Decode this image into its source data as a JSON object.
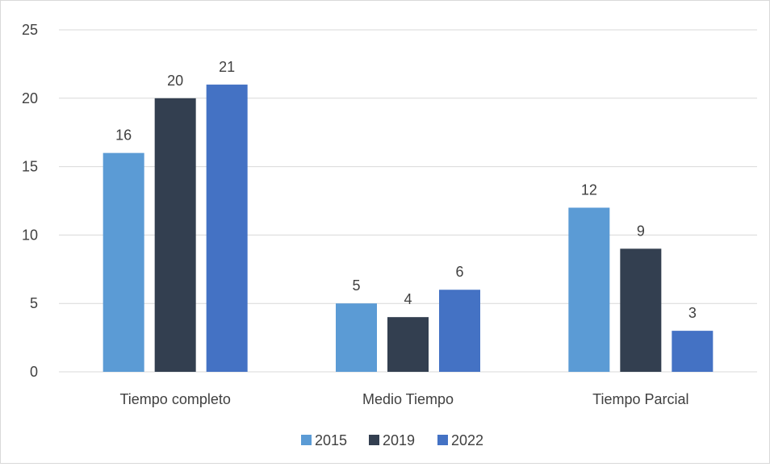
{
  "chart_data": {
    "type": "bar",
    "categories": [
      "Tiempo completo",
      "Medio Tiempo",
      "Tiempo Parcial"
    ],
    "series": [
      {
        "name": "2015",
        "values": [
          16,
          5,
          12
        ],
        "color": "#5b9bd5"
      },
      {
        "name": "2019",
        "values": [
          20,
          4,
          9
        ],
        "color": "#333f50"
      },
      {
        "name": "2022",
        "values": [
          21,
          6,
          3
        ],
        "color": "#4472c4"
      }
    ],
    "ylim": [
      0,
      25
    ],
    "yticks": [
      0,
      5,
      10,
      15,
      20,
      25
    ],
    "grid": true,
    "legend": "bottom",
    "data_labels": true
  }
}
